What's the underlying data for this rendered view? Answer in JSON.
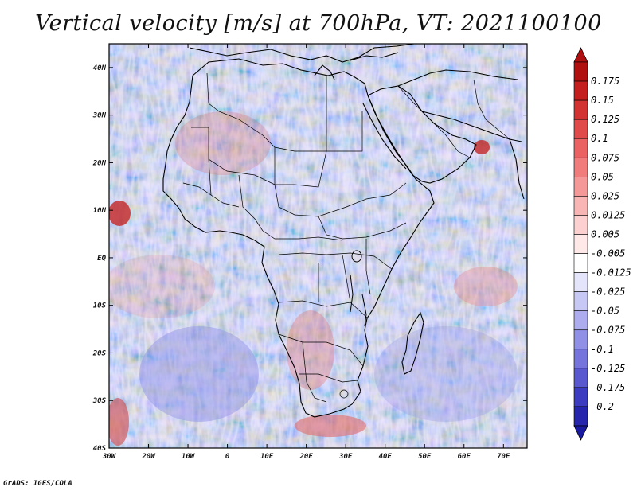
{
  "title": "Vertical velocity [m/s] at 700hPa, VT: 2021100100",
  "credit": "GrADS: IGES/COLA",
  "map": {
    "lon_range": [
      -30,
      76
    ],
    "lat_range": [
      -40,
      45
    ],
    "lat_ticks": [
      {
        "value": 40,
        "label": "40N"
      },
      {
        "value": 30,
        "label": "30N"
      },
      {
        "value": 20,
        "label": "20N"
      },
      {
        "value": 10,
        "label": "10N"
      },
      {
        "value": 0,
        "label": "EQ"
      },
      {
        "value": -10,
        "label": "10S"
      },
      {
        "value": -20,
        "label": "20S"
      },
      {
        "value": -30,
        "label": "30S"
      },
      {
        "value": -40,
        "label": "40S"
      }
    ],
    "lon_ticks": [
      {
        "value": -30,
        "label": "30W"
      },
      {
        "value": -20,
        "label": "20W"
      },
      {
        "value": -10,
        "label": "10W"
      },
      {
        "value": 0,
        "label": "0"
      },
      {
        "value": 10,
        "label": "10E"
      },
      {
        "value": 20,
        "label": "20E"
      },
      {
        "value": 30,
        "label": "30E"
      },
      {
        "value": 40,
        "label": "40E"
      },
      {
        "value": 50,
        "label": "50E"
      },
      {
        "value": 60,
        "label": "60E"
      },
      {
        "value": 70,
        "label": "70E"
      }
    ]
  },
  "colorbar": {
    "levels": [
      {
        "label": "0.175",
        "color": "#c41e1e"
      },
      {
        "label": "0.15",
        "color": "#d33232"
      },
      {
        "label": "0.125",
        "color": "#e04a4a"
      },
      {
        "label": "0.1",
        "color": "#ea6262"
      },
      {
        "label": "0.075",
        "color": "#f07c7c"
      },
      {
        "label": "0.05",
        "color": "#f59898"
      },
      {
        "label": "0.025",
        "color": "#f9b4b4"
      },
      {
        "label": "0.0125",
        "color": "#fcd0d0"
      },
      {
        "label": "0.005",
        "color": "#fee8e8"
      },
      {
        "label": "-0.005",
        "color": "#ffffff"
      },
      {
        "label": "-0.0125",
        "color": "#e4e4fa"
      },
      {
        "label": "-0.025",
        "color": "#c8c8f4"
      },
      {
        "label": "-0.05",
        "color": "#acacee"
      },
      {
        "label": "-0.075",
        "color": "#9090e6"
      },
      {
        "label": "-0.1",
        "color": "#7474dc"
      },
      {
        "label": "-0.125",
        "color": "#5858cf"
      },
      {
        "label": "-0.175",
        "color": "#3c3cc0"
      },
      {
        "label": "-0.2",
        "color": "#2626ac"
      }
    ],
    "top_color": "#b01010",
    "bottom_color": "#1a1aa0"
  }
}
